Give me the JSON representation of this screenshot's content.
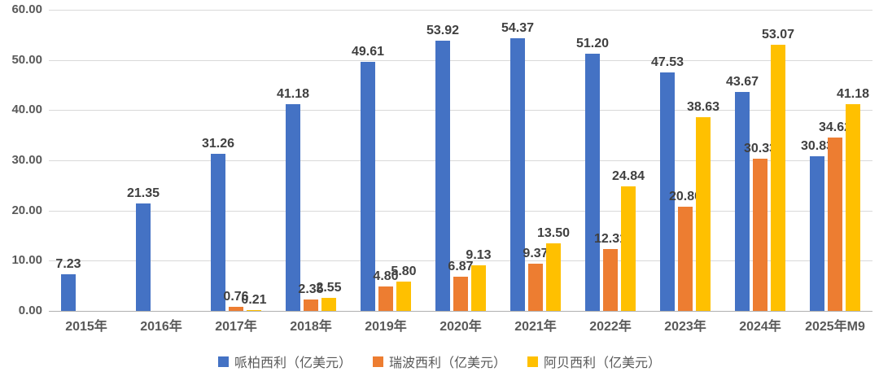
{
  "chart_data": {
    "type": "bar",
    "title": "",
    "categories": [
      "2015年",
      "2016年",
      "2017年",
      "2018年",
      "2019年",
      "2020年",
      "2021年",
      "2022年",
      "2023年",
      "2024年",
      "2025年M9"
    ],
    "series": [
      {
        "name": "哌柏西利（亿美元）",
        "color": "#4472C4",
        "values": [
          7.23,
          21.35,
          31.26,
          41.18,
          49.61,
          53.92,
          54.37,
          51.2,
          47.53,
          43.67,
          30.83
        ]
      },
      {
        "name": "瑞波西利（亿美元）",
        "color": "#ED7D31",
        "values": [
          null,
          null,
          0.76,
          2.35,
          4.8,
          6.87,
          9.37,
          12.31,
          20.8,
          30.33,
          34.62
        ]
      },
      {
        "name": "阿贝西利（亿美元）",
        "color": "#FFC000",
        "values": [
          null,
          null,
          0.21,
          2.55,
          5.8,
          9.13,
          13.5,
          24.84,
          38.63,
          53.07,
          41.18
        ]
      }
    ],
    "ylim": [
      0,
      60
    ],
    "ytick_step": 10,
    "ytick_labels": [
      "0.00",
      "10.00",
      "20.00",
      "30.00",
      "40.00",
      "50.00",
      "60.00"
    ],
    "data_label_decimals": 2,
    "grid": true,
    "legend_position": "bottom"
  },
  "colors": {
    "background": "#FFFFFF",
    "gridline": "#D9D9D9",
    "axis_line": "#B0B0B0",
    "tick_label": "#595959",
    "data_label": "#404040"
  }
}
